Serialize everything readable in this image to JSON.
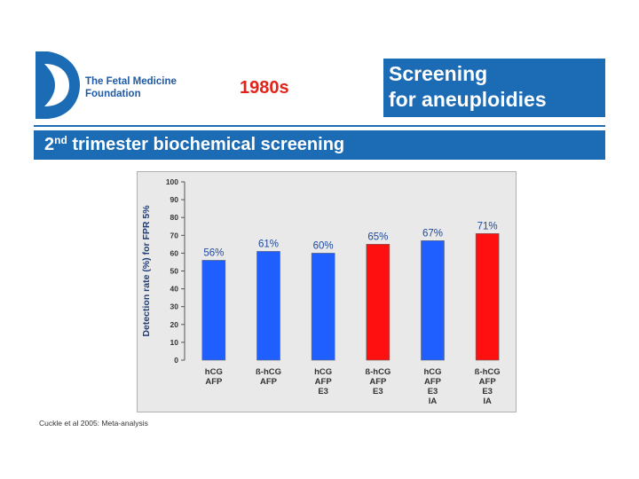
{
  "header": {
    "org_line1": "The Fetal Medicine",
    "org_line2": "Foundation",
    "decade": "1980s",
    "title_line1": "Screening",
    "title_line2": "for aneuploidies",
    "subtitle_prefix": "2",
    "subtitle_sup": "nd",
    "subtitle_rest": " trimester biochemical screening"
  },
  "colors": {
    "brand_blue": "#1c6bb5",
    "bar_blue": "#1f5eff",
    "bar_red": "#ff1010",
    "accent_red": "#e2231a",
    "plot_bg": "#e9e9e9"
  },
  "chart_data": {
    "type": "bar",
    "title": "",
    "ylabel": "Detection rate (%) for FPR 5%",
    "xlabel": "",
    "ylim": [
      0,
      100
    ],
    "yticks": [
      0,
      10,
      20,
      30,
      40,
      50,
      60,
      70,
      80,
      90,
      100
    ],
    "grid": false,
    "categories": [
      [
        "hCG",
        "AFP"
      ],
      [
        "ß-hCG",
        "AFP"
      ],
      [
        "hCG",
        "AFP",
        "E3"
      ],
      [
        "ß-hCG",
        "AFP",
        "E3"
      ],
      [
        "hCG",
        "AFP",
        "E3",
        "IA"
      ],
      [
        "ß-hCG",
        "AFP",
        "E3",
        "IA"
      ]
    ],
    "values": [
      56,
      61,
      60,
      65,
      67,
      71
    ],
    "value_labels": [
      "56%",
      "61%",
      "60%",
      "65%",
      "67%",
      "71%"
    ],
    "bar_colors": [
      "blue",
      "blue",
      "blue",
      "red",
      "blue",
      "red"
    ]
  },
  "footer": {
    "citation": "Cuckle et al 2005: Meta-analysis"
  }
}
